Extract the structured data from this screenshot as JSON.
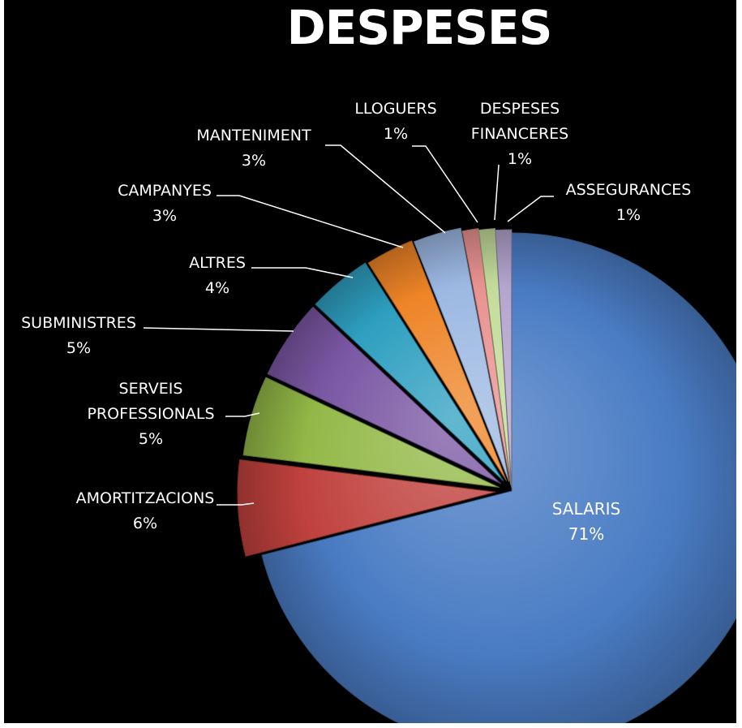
{
  "chart_data": {
    "type": "pie",
    "title": "DESPESES",
    "slices": [
      {
        "label": "SALARIS",
        "value": 71,
        "value_label": "71%",
        "color": "#4a7cc4"
      },
      {
        "label": "AMORTITZACIONS",
        "value": 6,
        "value_label": "6%",
        "color": "#c0413d"
      },
      {
        "label": "SERVEIS PROFESSIONALS",
        "value": 5,
        "value_label": "5%",
        "color": "#93b847"
      },
      {
        "label": "SUBMINISTRES",
        "value": 5,
        "value_label": "5%",
        "color": "#7a57a3"
      },
      {
        "label": "ALTRES",
        "value": 4,
        "value_label": "4%",
        "color": "#2e9fc0"
      },
      {
        "label": "CAMPANYES",
        "value": 3,
        "value_label": "3%",
        "color": "#ee8427"
      },
      {
        "label": "MANTENIMENT",
        "value": 3,
        "value_label": "3%",
        "color": "#9cb8e2"
      },
      {
        "label": "LLOGUERS",
        "value": 1,
        "value_label": "1%",
        "color": "#e89290"
      },
      {
        "label": "DESPESES FINANCERES",
        "value": 1,
        "value_label": "1%",
        "color": "#c3dc9a"
      },
      {
        "label": "ASSEGURANCES",
        "value": 1,
        "value_label": "1%",
        "color": "#b4a5cf"
      }
    ],
    "legend": "none",
    "labels": "outside with leader lines"
  }
}
